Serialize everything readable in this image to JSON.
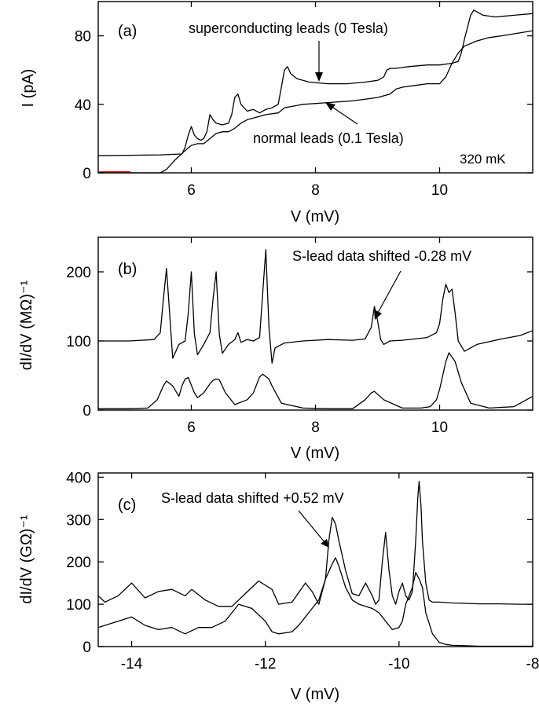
{
  "chart_data": [
    {
      "panel": "(a)",
      "type": "line",
      "xlabel": "V (mV)",
      "ylabel": "I (pA)",
      "xlim": [
        4.5,
        11.5
      ],
      "ylim": [
        0,
        100
      ],
      "xticks": [
        6,
        8,
        10
      ],
      "yticks": [
        0,
        40,
        80
      ],
      "grid": false,
      "annotations": [
        "superconducting leads (0 Tesla)",
        "normal leads (0.1 Tesla)",
        "320 mK"
      ],
      "series": [
        {
          "name": "superconducting leads (0 Tesla)",
          "x": [
            4.5,
            5.5,
            5.85,
            5.9,
            5.95,
            6.0,
            6.05,
            6.1,
            6.15,
            6.2,
            6.25,
            6.3,
            6.35,
            6.4,
            6.5,
            6.6,
            6.65,
            6.7,
            6.75,
            6.8,
            6.9,
            7.0,
            7.1,
            7.2,
            7.3,
            7.4,
            7.45,
            7.5,
            7.55,
            7.6,
            7.7,
            7.9,
            8.2,
            8.5,
            8.8,
            9.0,
            9.1,
            9.15,
            9.2,
            9.3,
            9.5,
            9.8,
            10.0,
            10.2,
            10.3,
            10.35,
            10.4,
            10.45,
            10.5,
            10.55,
            10.6,
            10.7,
            10.9,
            11.2,
            11.5
          ],
          "y": [
            10,
            10.5,
            11,
            15,
            22,
            27,
            22,
            20,
            19,
            20,
            24,
            34,
            31,
            29,
            28,
            29,
            34,
            44,
            46,
            40,
            36,
            37,
            35,
            37,
            38,
            40,
            50,
            60,
            62,
            58,
            55,
            53,
            52,
            52,
            53,
            54,
            56,
            60,
            61,
            61,
            62,
            63,
            63,
            64,
            65,
            70,
            78,
            85,
            92,
            95,
            94,
            92,
            91,
            92,
            93
          ]
        },
        {
          "name": "normal leads (0.1 Tesla)",
          "x": [
            4.5,
            5.5,
            5.6,
            5.75,
            5.9,
            6.0,
            6.1,
            6.2,
            6.3,
            6.4,
            6.5,
            6.6,
            6.7,
            6.8,
            6.9,
            7.0,
            7.2,
            7.4,
            7.5,
            7.8,
            8.2,
            8.6,
            9.0,
            9.2,
            9.3,
            9.4,
            9.6,
            9.8,
            10.0,
            10.1,
            10.2,
            10.3,
            10.4,
            10.6,
            10.8,
            11.0,
            11.5
          ],
          "y": [
            0,
            0,
            2,
            8,
            13,
            16,
            17,
            17,
            20,
            23,
            24,
            24,
            26,
            29,
            31,
            32,
            34,
            35,
            38,
            40,
            41,
            42,
            44,
            46,
            49,
            50,
            51,
            52,
            52,
            56,
            64,
            70,
            74,
            77,
            79,
            80,
            83
          ]
        }
      ]
    },
    {
      "panel": "(b)",
      "type": "line",
      "xlabel": "V (mV)",
      "ylabel": "dI/dV (MΩ)⁻¹",
      "xlim": [
        4.5,
        11.5
      ],
      "ylim": [
        0,
        250
      ],
      "xticks": [
        6,
        8,
        10
      ],
      "yticks": [
        0,
        100,
        200
      ],
      "grid": false,
      "annotations": [
        "S-lead data shifted -0.28 mV"
      ],
      "series": [
        {
          "x": [
            4.5,
            5.0,
            5.4,
            5.5,
            5.55,
            5.6,
            5.65,
            5.7,
            5.75,
            5.8,
            5.9,
            5.95,
            6.0,
            6.05,
            6.1,
            6.2,
            6.3,
            6.35,
            6.4,
            6.45,
            6.5,
            6.6,
            6.7,
            6.75,
            6.8,
            6.9,
            7.0,
            7.1,
            7.15,
            7.2,
            7.25,
            7.3,
            7.35,
            7.5,
            7.8,
            8.2,
            8.6,
            8.8,
            8.9,
            8.95,
            9.0,
            9.05,
            9.1,
            9.2,
            9.4,
            9.6,
            9.8,
            9.95,
            10.0,
            10.05,
            10.1,
            10.15,
            10.2,
            10.25,
            10.3,
            10.4,
            10.6,
            11.0,
            11.3,
            11.5
          ],
          "y": [
            100,
            100,
            102,
            112,
            160,
            205,
            140,
            75,
            85,
            95,
            100,
            140,
            200,
            110,
            80,
            95,
            112,
            160,
            200,
            110,
            82,
            95,
            102,
            112,
            98,
            102,
            100,
            105,
            170,
            232,
            120,
            68,
            90,
            97,
            100,
            102,
            101,
            103,
            120,
            150,
            130,
            102,
            95,
            100,
            101,
            103,
            105,
            112,
            125,
            160,
            182,
            170,
            175,
            140,
            100,
            85,
            95,
            103,
            108,
            115
          ]
        },
        {
          "x": [
            4.5,
            5.0,
            5.3,
            5.45,
            5.55,
            5.6,
            5.7,
            5.8,
            5.85,
            5.9,
            5.95,
            6.05,
            6.1,
            6.2,
            6.3,
            6.35,
            6.4,
            6.45,
            6.55,
            6.7,
            6.9,
            7.0,
            7.1,
            7.15,
            7.25,
            7.3,
            7.45,
            7.8,
            8.2,
            8.6,
            8.8,
            8.9,
            8.95,
            9.1,
            9.4,
            9.7,
            9.85,
            9.95,
            10.0,
            10.1,
            10.15,
            10.25,
            10.35,
            10.5,
            10.8,
            11.2,
            11.5
          ],
          "y": [
            2,
            2,
            3,
            15,
            35,
            42,
            35,
            20,
            35,
            45,
            47,
            25,
            18,
            25,
            38,
            43,
            45,
            44,
            25,
            8,
            15,
            25,
            48,
            52,
            45,
            35,
            10,
            3,
            2,
            2,
            15,
            25,
            27,
            15,
            3,
            3,
            5,
            15,
            30,
            70,
            83,
            70,
            40,
            10,
            3,
            5,
            20
          ]
        }
      ]
    },
    {
      "panel": "(c)",
      "type": "line",
      "xlabel": "V (mV)",
      "ylabel": "dI/dV (GΩ)⁻¹",
      "xlim": [
        -14.5,
        -8
      ],
      "ylim": [
        0,
        410
      ],
      "xticks": [
        -14,
        -12,
        -10,
        -8
      ],
      "yticks": [
        0,
        100,
        200,
        300,
        400
      ],
      "grid": false,
      "annotations": [
        "S-lead data shifted +0.52 mV"
      ],
      "series": [
        {
          "x": [
            -14.5,
            -14.4,
            -14.2,
            -14.0,
            -13.8,
            -13.6,
            -13.4,
            -13.2,
            -13.1,
            -12.9,
            -12.7,
            -12.5,
            -12.3,
            -12.1,
            -11.9,
            -11.8,
            -11.6,
            -11.4,
            -11.3,
            -11.2,
            -11.1,
            -11.05,
            -11.0,
            -10.95,
            -10.9,
            -10.8,
            -10.7,
            -10.6,
            -10.5,
            -10.4,
            -10.35,
            -10.3,
            -10.25,
            -10.2,
            -10.15,
            -10.1,
            -10.05,
            -10.0,
            -9.95,
            -9.9,
            -9.85,
            -9.8,
            -9.75,
            -9.72,
            -9.7,
            -9.67,
            -9.65,
            -9.6,
            -9.55,
            -9.5,
            -9.4,
            -9.2,
            -9.0,
            -8.8,
            -8.5,
            -8.2,
            -8.0
          ],
          "y": [
            120,
            105,
            120,
            150,
            115,
            130,
            135,
            120,
            135,
            110,
            95,
            95,
            125,
            155,
            135,
            100,
            105,
            150,
            130,
            100,
            160,
            250,
            305,
            290,
            250,
            180,
            125,
            120,
            150,
            120,
            100,
            110,
            200,
            270,
            180,
            120,
            100,
            130,
            150,
            120,
            110,
            130,
            250,
            350,
            390,
            330,
            250,
            150,
            110,
            105,
            105,
            103,
            102,
            101,
            101,
            100,
            100
          ]
        },
        {
          "x": [
            -14.5,
            -14.3,
            -14.0,
            -13.8,
            -13.6,
            -13.4,
            -13.2,
            -13.0,
            -12.8,
            -12.6,
            -12.5,
            -12.4,
            -12.2,
            -12.0,
            -11.9,
            -11.8,
            -11.6,
            -11.5,
            -11.4,
            -11.3,
            -11.2,
            -11.1,
            -11.0,
            -10.95,
            -10.9,
            -10.8,
            -10.7,
            -10.6,
            -10.5,
            -10.4,
            -10.3,
            -10.2,
            -10.1,
            -10.0,
            -9.95,
            -9.9,
            -9.8,
            -9.75,
            -9.7,
            -9.65,
            -9.6,
            -9.5,
            -9.4,
            -9.3,
            -9.2,
            -9.0,
            -8.8,
            -8.5,
            -8.2,
            -8.0
          ],
          "y": [
            45,
            55,
            70,
            50,
            40,
            45,
            30,
            45,
            45,
            60,
            80,
            100,
            90,
            60,
            35,
            30,
            35,
            50,
            70,
            90,
            110,
            160,
            195,
            210,
            190,
            140,
            110,
            100,
            95,
            90,
            80,
            60,
            40,
            45,
            60,
            100,
            140,
            175,
            160,
            140,
            80,
            30,
            10,
            5,
            3,
            2,
            1,
            1,
            1,
            1
          ]
        }
      ]
    }
  ]
}
